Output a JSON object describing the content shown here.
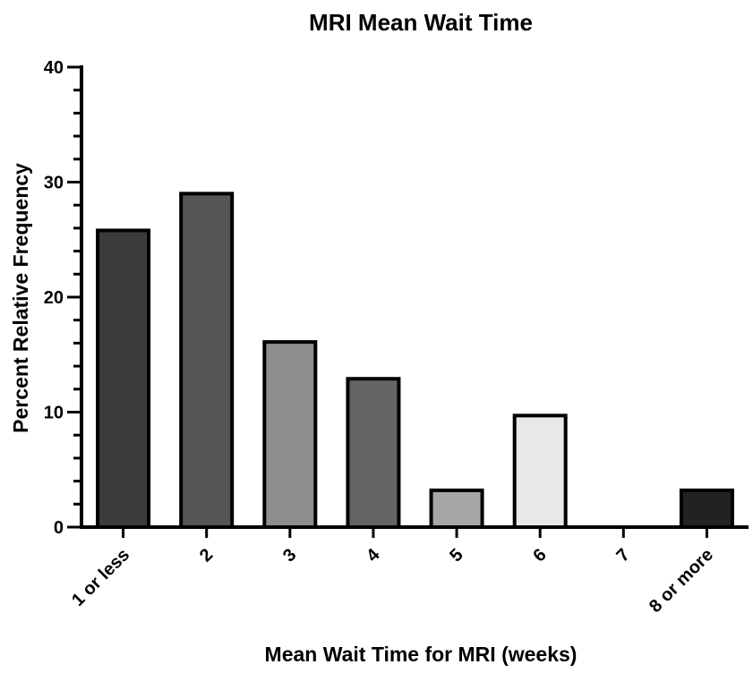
{
  "chart_data": {
    "type": "bar",
    "title": "MRI Mean Wait Time",
    "xlabel": "Mean Wait Time for MRI (weeks)",
    "ylabel": "Percent Relative Frequency",
    "categories": [
      "1 or less",
      "2",
      "3",
      "4",
      "5",
      "6",
      "7",
      "8 or more"
    ],
    "values": [
      25.8,
      29.0,
      16.1,
      12.9,
      3.2,
      9.7,
      0,
      3.2
    ],
    "bar_colors": [
      "#3b3b3b",
      "#555555",
      "#8e8e8e",
      "#646464",
      "#a7a7a7",
      "#e8e8e8",
      "#ffffff",
      "#222222"
    ],
    "ylim": [
      0,
      40
    ],
    "y_ticks": [
      0,
      10,
      20,
      30,
      40
    ],
    "grid": false,
    "legend": "none"
  }
}
